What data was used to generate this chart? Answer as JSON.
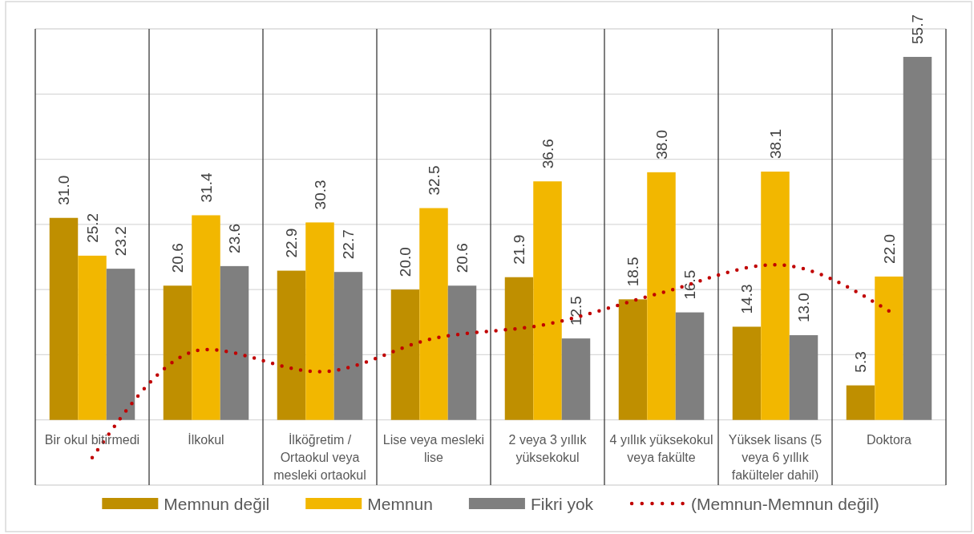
{
  "chart_data": {
    "type": "bar",
    "categories": [
      "Bir okul bitirmedi",
      "İlkokul",
      "İlköğretim / Ortaokul veya mesleki ortaokul",
      "Lise veya mesleki lise",
      "2 veya 3 yıllık yüksekokul",
      "4 yıllık yüksekokul veya fakülte",
      "Yüksek lisans (5 veya 6 yıllık fakülteler dahil)",
      "Doktora"
    ],
    "series": [
      {
        "name": "Memnun değil",
        "color": "#bf8f00",
        "values": [
          31.0,
          20.6,
          22.9,
          20.0,
          21.9,
          18.5,
          14.3,
          5.3
        ],
        "value_labels": [
          "31.0",
          "20.6",
          "22.9",
          "20.0",
          "21.9",
          "18.5",
          "14.3",
          "5.3"
        ]
      },
      {
        "name": "Memnun",
        "color": "#f2b700",
        "values": [
          25.2,
          31.4,
          30.3,
          32.5,
          36.6,
          38.0,
          38.1,
          22.0
        ],
        "value_labels": [
          "25.2",
          "31.4",
          "30.3",
          "32.5",
          "36.6",
          "38.0",
          "38.1",
          "22.0"
        ]
      },
      {
        "name": "Fikri yok",
        "color": "#7f7f7f",
        "values": [
          23.2,
          23.6,
          22.7,
          20.6,
          12.5,
          16.5,
          13.0,
          55.7
        ],
        "value_labels": [
          "23.2",
          "23.6",
          "22.7",
          "20.6",
          "12.5",
          "16.5",
          "13.0",
          "55.7"
        ]
      },
      {
        "name": "(Memnun-Memnun değil)",
        "type": "line",
        "color": "#c00000",
        "line_style": "dotted",
        "values": [
          -5.8,
          10.8,
          7.4,
          12.5,
          14.7,
          19.5,
          23.8,
          16.7
        ]
      }
    ],
    "ylim": [
      -10,
      60
    ],
    "yticks": [
      {
        "value": -10,
        "label": null
      },
      {
        "value": 0,
        "label": null
      },
      {
        "value": 10,
        "label": null
      },
      {
        "value": 20,
        "label": null
      },
      {
        "value": 30,
        "label": null
      },
      {
        "value": 40,
        "label": null
      },
      {
        "value": 50,
        "label": null
      },
      {
        "value": 60,
        "label": null
      }
    ],
    "tick_labels": "x",
    "grid": true,
    "legend": "bottom"
  }
}
